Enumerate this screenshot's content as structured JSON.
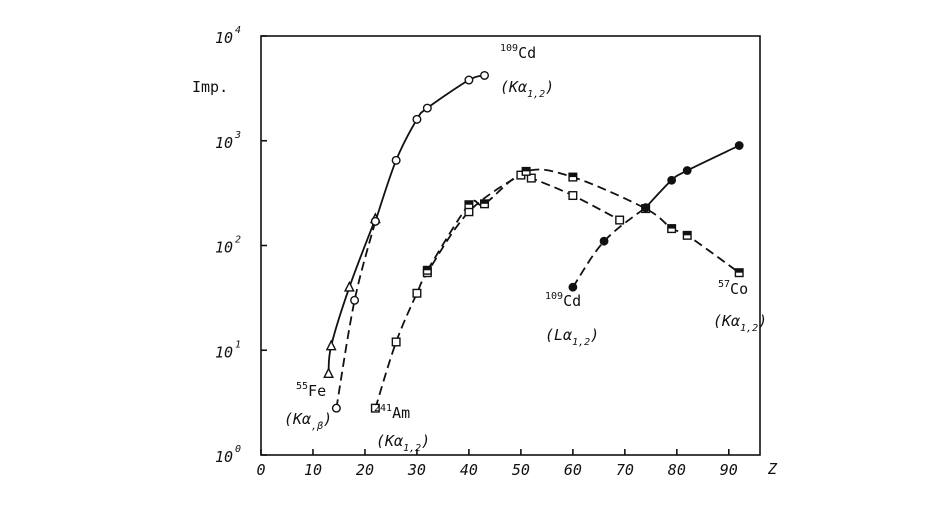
{
  "chart_data": {
    "type": "line",
    "title": "",
    "ylabel": "Imp.",
    "xlabel": "Z",
    "xlim": [
      0,
      96
    ],
    "ylim_log10": [
      0,
      4
    ],
    "xticks": [
      "0",
      "10",
      "20",
      "30",
      "40",
      "50",
      "60",
      "70",
      "80",
      "90"
    ],
    "xtick_values": [
      0,
      10,
      20,
      30,
      40,
      50,
      60,
      70,
      80,
      90
    ],
    "yticks": [
      "10",
      "10",
      "10",
      "10",
      "10"
    ],
    "ytick_exponents": [
      "0",
      "1",
      "2",
      "3",
      "4"
    ],
    "ytick_values": [
      1,
      10,
      100,
      1000,
      10000
    ],
    "scale_y": "log",
    "series": [
      {
        "line": "solid",
        "marker": "open-triangle",
        "points": [
          [
            13,
            6
          ],
          [
            13.5,
            11
          ],
          [
            17,
            40
          ],
          [
            22,
            180
          ]
        ]
      },
      {
        "line": "solid",
        "marker": "open-circle",
        "points": [
          [
            22,
            170
          ],
          [
            26,
            650
          ],
          [
            30,
            1600
          ],
          [
            32,
            2050
          ],
          [
            40,
            3800
          ],
          [
            43,
            4200
          ]
        ]
      },
      {
        "line": "dashed",
        "marker": "open-circle",
        "points": [
          [
            14.5,
            2.8
          ],
          [
            18,
            30
          ],
          [
            22,
            170
          ]
        ]
      },
      {
        "line": "dashed",
        "marker": "open-square",
        "points": [
          [
            22,
            2.8
          ],
          [
            26,
            12
          ],
          [
            30,
            35
          ],
          [
            32,
            55
          ],
          [
            40,
            210
          ],
          [
            50,
            470
          ],
          [
            52,
            440
          ],
          [
            60,
            300
          ],
          [
            69,
            175
          ]
        ]
      },
      {
        "line": "dashed",
        "marker": "half-filled-square",
        "points": [
          [
            32,
            58
          ],
          [
            40,
            245
          ],
          [
            43,
            250
          ],
          [
            51,
            510
          ],
          [
            60,
            450
          ],
          [
            74,
            225
          ],
          [
            79,
            145
          ],
          [
            82,
            125
          ],
          [
            92,
            55
          ]
        ]
      },
      {
        "line": "dashed",
        "marker": "filled-circle",
        "points": [
          [
            60,
            40
          ],
          [
            66,
            110
          ],
          [
            74,
            230
          ]
        ]
      },
      {
        "line": "solid",
        "marker": "filled-circle",
        "points": [
          [
            74,
            230
          ],
          [
            79,
            420
          ],
          [
            82,
            520
          ],
          [
            92,
            900
          ]
        ]
      }
    ],
    "annotations": [
      {
        "sup": "109",
        "main": "Cd",
        "sub_text": "(Kα",
        "sub_idx": "1,2",
        "close": ")"
      },
      {
        "sup": "55",
        "main": "Fe",
        "sub_text": "(Kα",
        "sub_idx": ",β",
        "close": ")"
      },
      {
        "sup": "241",
        "main": "Am",
        "sub_text": "(Kα",
        "sub_idx": "1,2",
        "close": ")"
      },
      {
        "sup": "109",
        "main": "Cd",
        "sub_text": "(Lα",
        "sub_idx": "1,2",
        "close": ")"
      },
      {
        "sup": "57",
        "main": "Co",
        "sub_text": "(Kα",
        "sub_idx": "1,2",
        "close": ")"
      }
    ],
    "grid": false,
    "legend": "none"
  }
}
